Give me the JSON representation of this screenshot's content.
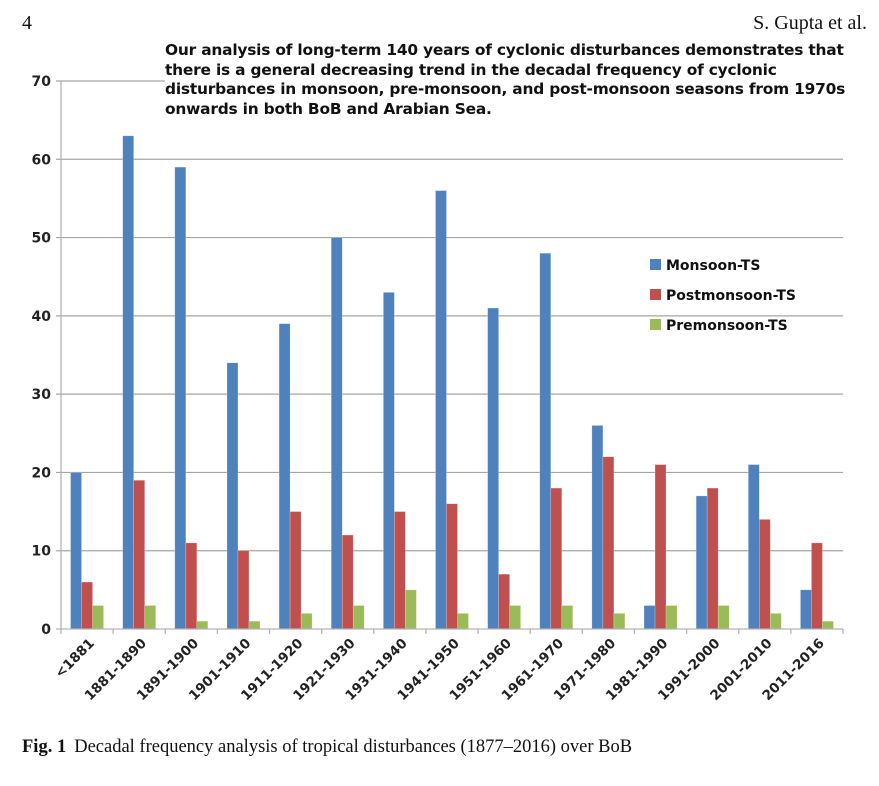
{
  "header": {
    "page_number": "4",
    "running_head": "S. Gupta et al."
  },
  "annotation": "Our analysis of long-term 140 years of cyclonic disturbances demonstrates that there is a general decreasing trend in the decadal frequency of cyclonic disturbances in monsoon, pre-monsoon, and post-monsoon seasons from 1970s onwards in both BoB and Arabian Sea.",
  "caption": {
    "label": "Fig. 1",
    "text": "Decadal frequency analysis of tropical disturbances (1877–2016) over BoB"
  },
  "chart_data": {
    "type": "bar",
    "title": "",
    "xlabel": "",
    "ylabel": "",
    "ylim": [
      0,
      70
    ],
    "yticks": [
      0,
      10,
      20,
      30,
      40,
      50,
      60,
      70
    ],
    "grid": true,
    "legend_position": "right",
    "categories": [
      "<1881",
      "1881-1890",
      "1891-1900",
      "1901-1910",
      "1911-1920",
      "1921-1930",
      "1931-1940",
      "1941-1950",
      "1951-1960",
      "1961-1970",
      "1971-1980",
      "1981-1990",
      "1991-2000",
      "2001-2010",
      "2011-2016"
    ],
    "series": [
      {
        "name": "Monsoon-TS",
        "color": "#4f81bd",
        "values": [
          20,
          63,
          59,
          34,
          39,
          50,
          43,
          56,
          41,
          48,
          26,
          3,
          17,
          21,
          5
        ]
      },
      {
        "name": "Postmonsoon-TS",
        "color": "#c0504d",
        "values": [
          6,
          19,
          11,
          10,
          15,
          12,
          15,
          16,
          7,
          18,
          22,
          21,
          18,
          14,
          11
        ]
      },
      {
        "name": "Premonsoon-TS",
        "color": "#9bbb59",
        "values": [
          3,
          3,
          1,
          1,
          2,
          3,
          5,
          2,
          3,
          3,
          2,
          3,
          3,
          2,
          1
        ]
      }
    ]
  }
}
